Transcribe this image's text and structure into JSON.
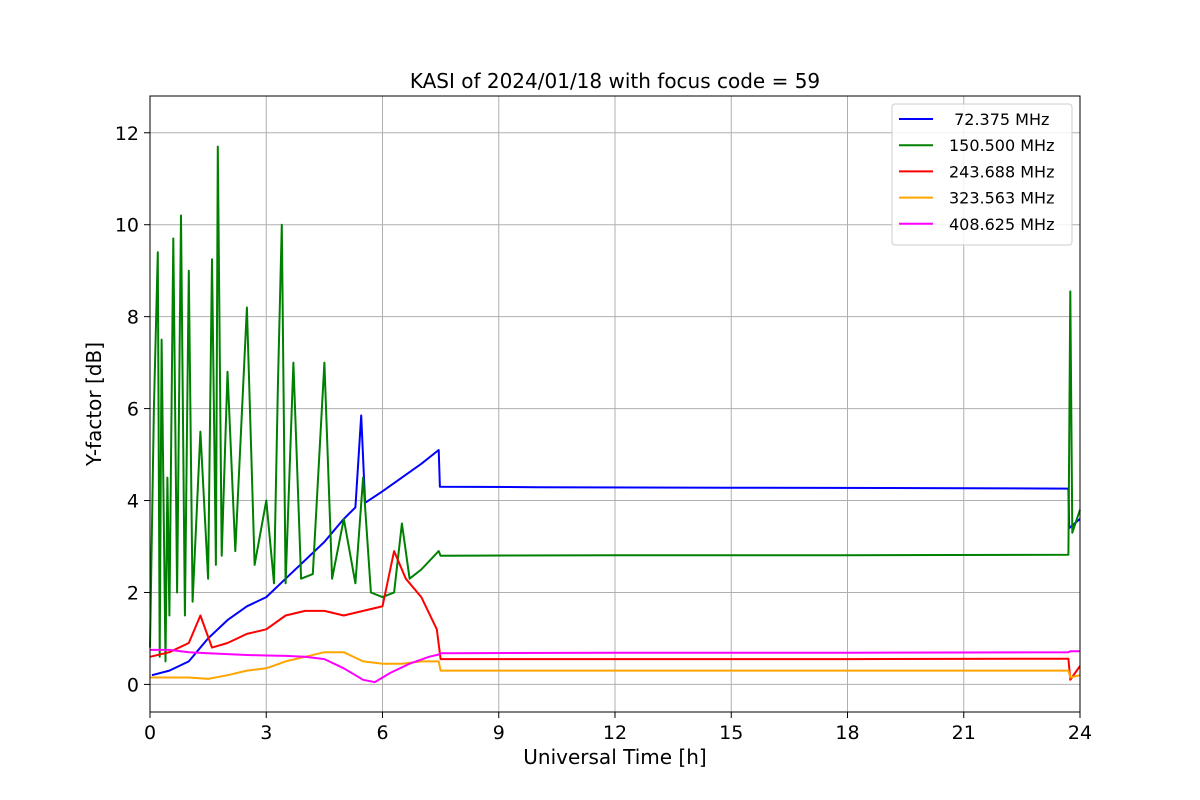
{
  "chart_data": {
    "type": "line",
    "title": "KASI of 2024/01/18 with focus code = 59",
    "xlabel": "Universal Time [h]",
    "ylabel": "Y-factor [dB]",
    "xlim": [
      0,
      24
    ],
    "ylim": [
      -0.6,
      12.8
    ],
    "xticks": [
      0,
      3,
      6,
      9,
      12,
      15,
      18,
      21,
      24
    ],
    "yticks": [
      0,
      2,
      4,
      6,
      8,
      10,
      12
    ],
    "grid": true,
    "legend_position": "top-right",
    "series": [
      {
        "name": " 72.375 MHz",
        "color": "#0000ff",
        "points": [
          [
            0.05,
            0.2
          ],
          [
            0.5,
            0.3
          ],
          [
            1,
            0.5
          ],
          [
            1.5,
            1.0
          ],
          [
            2,
            1.4
          ],
          [
            2.5,
            1.7
          ],
          [
            3,
            1.9
          ],
          [
            3.5,
            2.3
          ],
          [
            4,
            2.7
          ],
          [
            4.5,
            3.1
          ],
          [
            5,
            3.6
          ],
          [
            5.3,
            3.85
          ],
          [
            5.45,
            5.85
          ],
          [
            5.55,
            3.95
          ],
          [
            6,
            4.2
          ],
          [
            6.5,
            4.5
          ],
          [
            7,
            4.8
          ],
          [
            7.45,
            5.1
          ],
          [
            7.48,
            4.3
          ],
          [
            10,
            4.29
          ],
          [
            15,
            4.28
          ],
          [
            20,
            4.27
          ],
          [
            23.7,
            4.26
          ],
          [
            23.72,
            3.4
          ],
          [
            24,
            3.6
          ]
        ]
      },
      {
        "name": "150.500 MHz",
        "color": "#008000",
        "points": [
          [
            0,
            0.8
          ],
          [
            0.1,
            6.0
          ],
          [
            0.2,
            9.4
          ],
          [
            0.25,
            0.6
          ],
          [
            0.3,
            7.5
          ],
          [
            0.4,
            0.5
          ],
          [
            0.45,
            4.5
          ],
          [
            0.5,
            1.5
          ],
          [
            0.6,
            9.7
          ],
          [
            0.7,
            2.0
          ],
          [
            0.8,
            10.2
          ],
          [
            0.9,
            1.5
          ],
          [
            1.0,
            9.0
          ],
          [
            1.1,
            1.8
          ],
          [
            1.3,
            5.5
          ],
          [
            1.5,
            2.3
          ],
          [
            1.6,
            9.25
          ],
          [
            1.7,
            2.6
          ],
          [
            1.75,
            11.7
          ],
          [
            1.85,
            2.8
          ],
          [
            2.0,
            6.8
          ],
          [
            2.2,
            2.9
          ],
          [
            2.5,
            8.2
          ],
          [
            2.7,
            2.6
          ],
          [
            3.0,
            4.0
          ],
          [
            3.2,
            2.2
          ],
          [
            3.3,
            6.5
          ],
          [
            3.4,
            10.0
          ],
          [
            3.5,
            2.2
          ],
          [
            3.7,
            7.0
          ],
          [
            3.9,
            2.3
          ],
          [
            4.2,
            2.4
          ],
          [
            4.5,
            7.0
          ],
          [
            4.7,
            2.3
          ],
          [
            5.0,
            3.6
          ],
          [
            5.3,
            2.2
          ],
          [
            5.5,
            4.5
          ],
          [
            5.7,
            2.0
          ],
          [
            6.0,
            1.9
          ],
          [
            6.3,
            2.0
          ],
          [
            6.5,
            3.5
          ],
          [
            6.7,
            2.3
          ],
          [
            7.0,
            2.5
          ],
          [
            7.45,
            2.9
          ],
          [
            7.5,
            2.8
          ],
          [
            12,
            2.81
          ],
          [
            18,
            2.81
          ],
          [
            23.7,
            2.82
          ],
          [
            23.75,
            8.55
          ],
          [
            23.8,
            3.3
          ],
          [
            24,
            3.8
          ]
        ]
      },
      {
        "name": "243.688 MHz",
        "color": "#ff0000",
        "points": [
          [
            0,
            0.6
          ],
          [
            0.5,
            0.7
          ],
          [
            1.0,
            0.9
          ],
          [
            1.3,
            1.5
          ],
          [
            1.6,
            0.8
          ],
          [
            2.0,
            0.9
          ],
          [
            2.5,
            1.1
          ],
          [
            3.0,
            1.2
          ],
          [
            3.5,
            1.5
          ],
          [
            4.0,
            1.6
          ],
          [
            4.5,
            1.6
          ],
          [
            5.0,
            1.5
          ],
          [
            5.5,
            1.6
          ],
          [
            6.0,
            1.7
          ],
          [
            6.3,
            2.9
          ],
          [
            6.6,
            2.3
          ],
          [
            7.0,
            1.9
          ],
          [
            7.4,
            1.2
          ],
          [
            7.5,
            0.55
          ],
          [
            12,
            0.55
          ],
          [
            18,
            0.55
          ],
          [
            23.7,
            0.56
          ],
          [
            23.75,
            0.1
          ],
          [
            24,
            0.4
          ]
        ]
      },
      {
        "name": "323.563 MHz",
        "color": "#ffa500",
        "points": [
          [
            0,
            0.15
          ],
          [
            0.5,
            0.15
          ],
          [
            1.0,
            0.15
          ],
          [
            1.5,
            0.12
          ],
          [
            2.0,
            0.2
          ],
          [
            2.5,
            0.3
          ],
          [
            3.0,
            0.35
          ],
          [
            3.5,
            0.5
          ],
          [
            4.0,
            0.6
          ],
          [
            4.5,
            0.7
          ],
          [
            5.0,
            0.7
          ],
          [
            5.5,
            0.5
          ],
          [
            6.0,
            0.45
          ],
          [
            6.5,
            0.45
          ],
          [
            7.0,
            0.5
          ],
          [
            7.45,
            0.5
          ],
          [
            7.5,
            0.3
          ],
          [
            12,
            0.3
          ],
          [
            18,
            0.3
          ],
          [
            23.7,
            0.3
          ],
          [
            23.75,
            0.15
          ],
          [
            24,
            0.2
          ]
        ]
      },
      {
        "name": "408.625 MHz",
        "color": "#ff00ff",
        "points": [
          [
            0,
            0.75
          ],
          [
            0.5,
            0.75
          ],
          [
            1.0,
            0.7
          ],
          [
            1.5,
            0.68
          ],
          [
            2.0,
            0.66
          ],
          [
            2.5,
            0.64
          ],
          [
            3.0,
            0.63
          ],
          [
            3.5,
            0.62
          ],
          [
            4.0,
            0.6
          ],
          [
            4.5,
            0.55
          ],
          [
            5.0,
            0.35
          ],
          [
            5.5,
            0.1
          ],
          [
            5.8,
            0.05
          ],
          [
            6.2,
            0.25
          ],
          [
            6.7,
            0.45
          ],
          [
            7.2,
            0.6
          ],
          [
            7.45,
            0.65
          ],
          [
            7.5,
            0.68
          ],
          [
            12,
            0.69
          ],
          [
            18,
            0.69
          ],
          [
            23.7,
            0.7
          ],
          [
            23.75,
            0.72
          ],
          [
            24,
            0.72
          ]
        ]
      }
    ]
  }
}
